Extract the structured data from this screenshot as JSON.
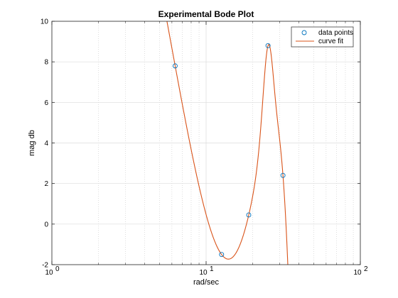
{
  "chart_data": {
    "type": "scatter",
    "title": "Experimental Bode Plot",
    "xlabel": "rad/sec",
    "ylabel": "mag db",
    "xscale": "log",
    "xlim": [
      1,
      100
    ],
    "ylim": [
      -2,
      10
    ],
    "grid": true,
    "legend_position": "top-right",
    "x_ticks": [
      1,
      10,
      100
    ],
    "x_tick_labels": [
      {
        "base": "10",
        "exp": "0"
      },
      {
        "base": "10",
        "exp": "1"
      },
      {
        "base": "10",
        "exp": "2"
      }
    ],
    "y_ticks": [
      -2,
      0,
      2,
      4,
      6,
      8,
      10
    ],
    "y_tick_labels": [
      "-2",
      "0",
      "2",
      "4",
      "6",
      "8",
      "10"
    ],
    "series": [
      {
        "name": "data points",
        "kind": "markers",
        "color": "#0072BD",
        "x": [
          6.3,
          12.6,
          18.9,
          25.2,
          31.5
        ],
        "y": [
          7.8,
          -1.5,
          0.45,
          8.8,
          2.4
        ]
      },
      {
        "name": "curve fit",
        "kind": "line",
        "color": "#D95319",
        "fit": "cubic in rad/sec through the data points, plus a narrow peak near 25 rad/sec"
      }
    ]
  }
}
